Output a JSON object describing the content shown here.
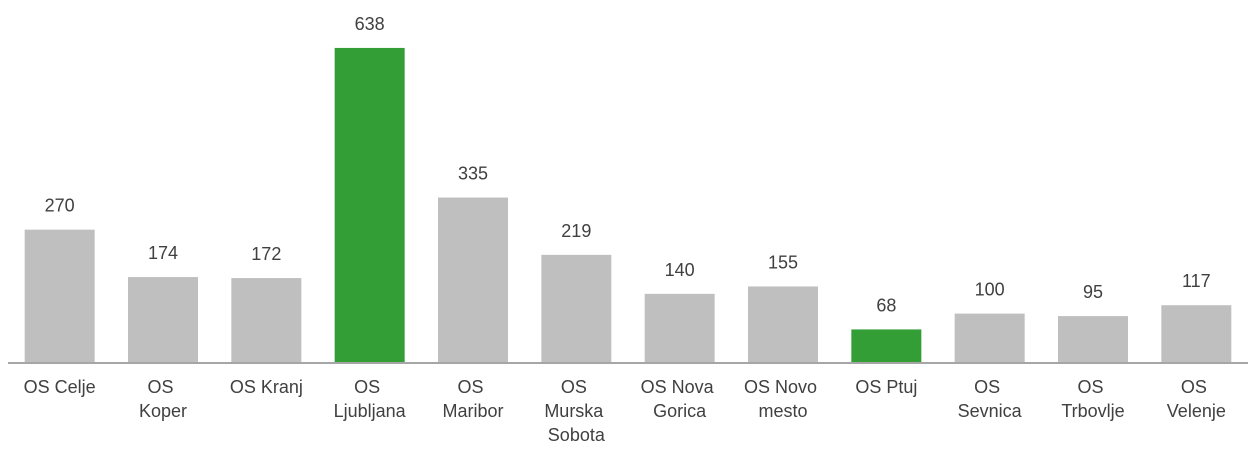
{
  "chart_data": {
    "type": "bar",
    "categories": [
      "OS Celje",
      "OS Koper",
      "OS Kranj",
      "OS Ljubljana",
      "OS Maribor",
      "OS Murska Sobota",
      "OS Nova Gorica",
      "OS Novo mesto",
      "OS Ptuj",
      "OS Sevnica",
      "OS Trbovlje",
      "OS Velenje"
    ],
    "values": [
      270,
      174,
      172,
      638,
      335,
      219,
      140,
      155,
      68,
      100,
      95,
      117
    ],
    "colors": [
      "#bfbfbf",
      "#bfbfbf",
      "#bfbfbf",
      "#339e35",
      "#bfbfbf",
      "#bfbfbf",
      "#bfbfbf",
      "#bfbfbf",
      "#339e35",
      "#bfbfbf",
      "#bfbfbf",
      "#bfbfbf"
    ],
    "ylim": [
      0,
      650
    ]
  }
}
